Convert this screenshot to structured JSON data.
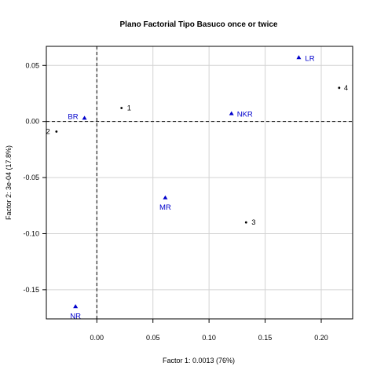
{
  "chart_data": {
    "type": "scatter",
    "title": "Plano Factorial Tipo Basuco once or twice",
    "xlabel": "Factor 1: 0.0013 (76%)",
    "ylabel": "Factor 2: 3e-04 (17.8%)",
    "xlim": [
      -0.045,
      0.228
    ],
    "ylim": [
      -0.176,
      0.067
    ],
    "x_ticks": [
      0.0,
      0.05,
      0.1,
      0.15,
      0.2
    ],
    "x_tick_labels": [
      "0.00",
      "0.05",
      "0.10",
      "0.15",
      "0.20"
    ],
    "y_ticks": [
      -0.15,
      -0.1,
      -0.05,
      0.0,
      0.05
    ],
    "y_tick_labels": [
      "-0.15",
      "-0.10",
      "-0.05",
      "0.00",
      "0.05"
    ],
    "grid": true,
    "reference_lines": {
      "x": 0,
      "y": 0,
      "style": "dashed"
    },
    "series": [
      {
        "marker": "dot",
        "color": "#000000",
        "points": [
          {
            "label": "1",
            "x": 0.022,
            "y": 0.012
          },
          {
            "label": "2",
            "x": -0.036,
            "y": -0.009
          },
          {
            "label": "3",
            "x": 0.133,
            "y": -0.09
          },
          {
            "label": "4",
            "x": 0.216,
            "y": 0.03
          }
        ]
      },
      {
        "marker": "triangle",
        "color": "#0000cc",
        "points": [
          {
            "label": "BR",
            "x": -0.011,
            "y": 0.003
          },
          {
            "label": "LR",
            "x": 0.18,
            "y": 0.057
          },
          {
            "label": "NKR",
            "x": 0.12,
            "y": 0.007
          },
          {
            "label": "MR",
            "x": 0.061,
            "y": -0.068
          },
          {
            "label": "NR",
            "x": -0.019,
            "y": -0.165
          }
        ]
      }
    ]
  }
}
